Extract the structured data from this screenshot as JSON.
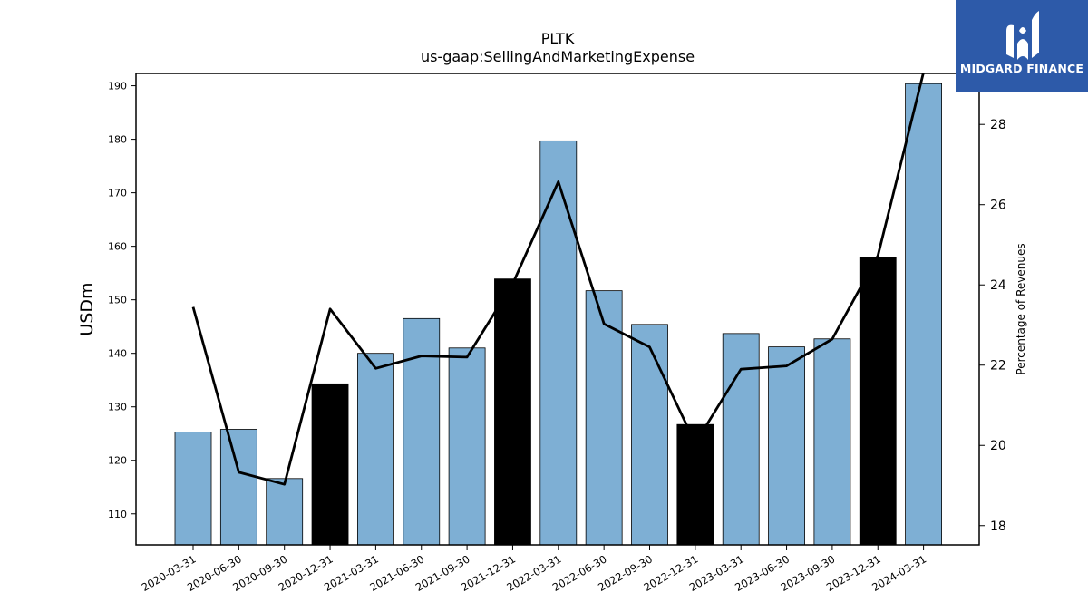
{
  "logo": {
    "text": "MIDGARD FINANCE",
    "icon": "midgard-logo-mark",
    "background": "#2d5aa9"
  },
  "chart_data": {
    "type": "bar",
    "title": "PLTK",
    "subtitle": "us-gaap:SellingAndMarketingExpense",
    "ylabel": "USDm",
    "y2label": "Percentage of Revenues",
    "categories": [
      "2020-03-31",
      "2020-06-30",
      "2020-09-30",
      "2020-12-31",
      "2021-03-31",
      "2021-06-30",
      "2021-09-30",
      "2021-12-31",
      "2022-03-31",
      "2022-06-30",
      "2022-09-30",
      "2022-12-31",
      "2023-03-31",
      "2023-06-30",
      "2023-09-30",
      "2023-12-31",
      "2024-03-31"
    ],
    "series": [
      {
        "type": "bar",
        "values": [
          125.3,
          125.8,
          116.6,
          134.3,
          140.0,
          146.5,
          141.0,
          153.9,
          179.7,
          151.7,
          145.4,
          126.7,
          143.7,
          141.2,
          142.7,
          157.9,
          190.4
        ]
      },
      {
        "type": "line",
        "axis": "right",
        "values": [
          23.45,
          19.33,
          19.03,
          23.4,
          21.92,
          22.23,
          22.2,
          24.03,
          26.57,
          23.03,
          22.45,
          20.05,
          21.9,
          21.98,
          22.65,
          24.73,
          29.3
        ]
      }
    ],
    "highlight_categories": [
      "2020-12-31",
      "2021-12-31",
      "2022-12-31",
      "2023-12-31"
    ],
    "ylim": [
      104.2,
      192.3
    ],
    "y2lim": [
      17.52,
      29.27
    ],
    "yticks": [
      110,
      120,
      130,
      140,
      150,
      160,
      170,
      180,
      190
    ],
    "y2ticks": [
      18,
      20,
      22,
      24,
      26,
      28
    ],
    "bar_color": "#7eafd4",
    "highlight_color": "#000000",
    "line_color": "#000000",
    "grid": false,
    "legend": "none"
  }
}
